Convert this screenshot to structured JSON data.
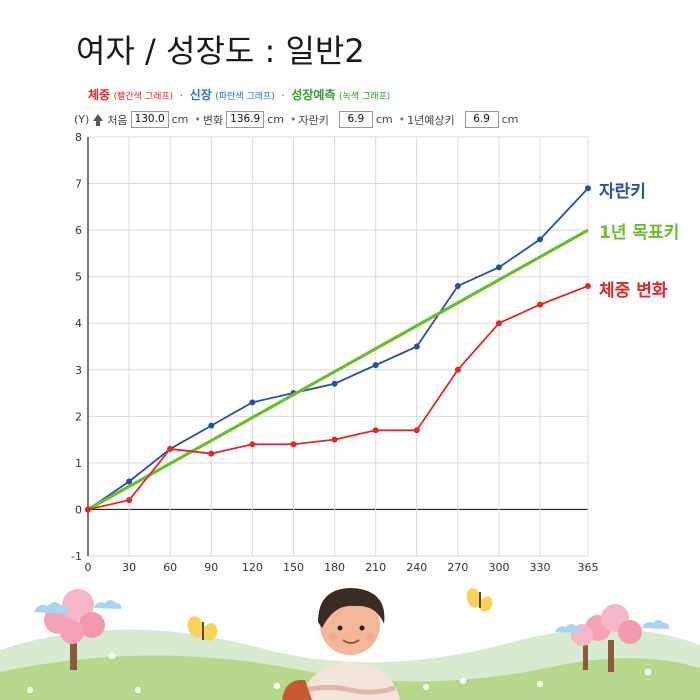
{
  "title": "여자 / 성장도 : 일반2",
  "legend": {
    "weight": {
      "label": "체중",
      "note": "(빨간색 그래프)",
      "color": "#e02828"
    },
    "height": {
      "label": "신장",
      "note": "(파란색 그래프)",
      "color": "#2a4f9e"
    },
    "forecast": {
      "label": "성장예측",
      "note": "(녹색 그래프)",
      "color": "#2e9e2e"
    },
    "separator": "·"
  },
  "controls": {
    "y_label": "(Y)",
    "start_label": "처음",
    "start_value": "130.0",
    "change_label": "변화",
    "change_value": "136.9",
    "grown_label": "자란키",
    "grown_value": "6.9",
    "yearly_label": "1년예상키",
    "yearly_value": "6.9",
    "unit": "cm",
    "bullet": "•"
  },
  "chart_data": {
    "type": "line",
    "x": [
      0,
      30,
      60,
      90,
      120,
      150,
      180,
      210,
      240,
      270,
      300,
      330,
      365
    ],
    "xlim": [
      0,
      365
    ],
    "ylim": [
      -1,
      8
    ],
    "x_ticks": [
      0,
      30,
      60,
      90,
      120,
      150,
      180,
      210,
      240,
      270,
      300,
      330,
      365
    ],
    "y_ticks": [
      -1,
      0,
      1,
      2,
      3,
      4,
      5,
      6,
      7,
      8
    ],
    "grid": true,
    "series": [
      {
        "name": "자란키",
        "color": "#2a4f9e",
        "markers": true,
        "values": [
          0,
          0.6,
          1.3,
          1.8,
          2.3,
          2.5,
          2.7,
          3.1,
          3.5,
          4.8,
          5.2,
          5.8,
          6.9
        ]
      },
      {
        "name": "1년 목표키",
        "color": "#6cbd2e",
        "markers": false,
        "x": [
          0,
          365
        ],
        "values": [
          0,
          6.0
        ]
      },
      {
        "name": "체중 변화",
        "color": "#e02828",
        "markers": true,
        "values": [
          0,
          0.2,
          1.3,
          1.2,
          1.4,
          1.4,
          1.5,
          1.7,
          1.7,
          3.0,
          4.0,
          4.4,
          4.8
        ]
      }
    ]
  }
}
